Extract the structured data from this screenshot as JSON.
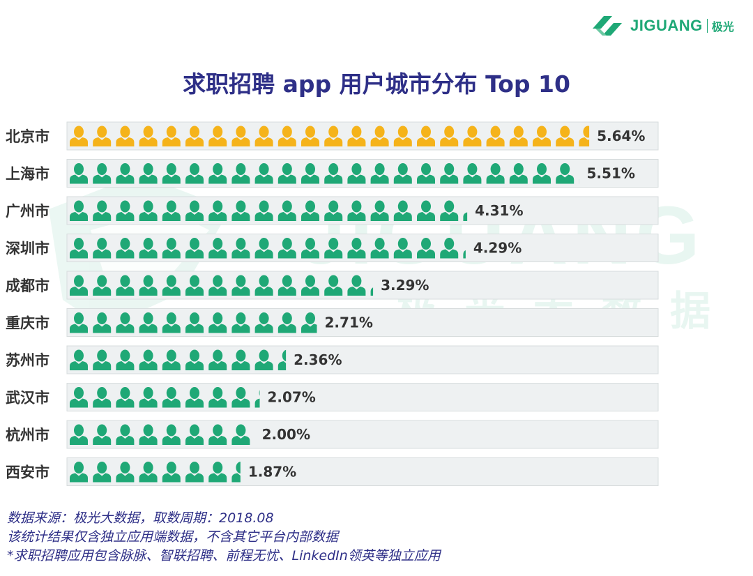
{
  "brand": {
    "name": "JIGUANG",
    "cn": "极光"
  },
  "watermark": {
    "en": "JIGUANG",
    "cn": "— 极 光 大 数 据"
  },
  "colors": {
    "title": "#2e2f87",
    "gold": "#f5b31a",
    "green": "#1fa876",
    "track": "#eef1f2",
    "value": "#333333"
  },
  "chart_data": {
    "type": "bar",
    "title": "求职招聘 app 用户城市分布 Top 10",
    "categories": [
      "北京市",
      "上海市",
      "广州市",
      "深圳市",
      "成都市",
      "重庆市",
      "苏州市",
      "武汉市",
      "杭州市",
      "西安市"
    ],
    "values": [
      5.64,
      5.51,
      4.31,
      4.29,
      3.29,
      2.71,
      2.36,
      2.07,
      2.0,
      1.87
    ],
    "value_labels": [
      "5.64%",
      "5.51%",
      "4.31%",
      "4.29%",
      "3.29%",
      "2.71%",
      "2.36%",
      "2.07%",
      "2.00%",
      "1.87%"
    ],
    "unit": "%",
    "icons_per_percent": 4,
    "highlight_index": 0
  },
  "footer": {
    "line1": "数据来源：极光大数据，取数周期：2018.08",
    "line2": "该统计结果仅含独立应用端数据，不含其它平台内部数据",
    "line3": " *求职招聘应用包含脉脉、智联招聘、前程无忧、LinkedIn领英等独立应用"
  }
}
